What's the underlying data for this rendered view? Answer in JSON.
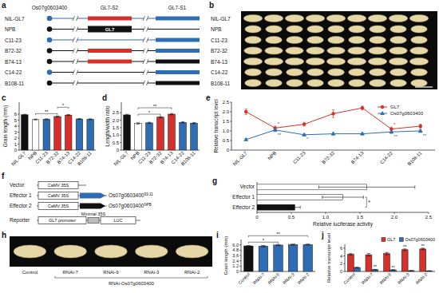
{
  "panels": {
    "a": {
      "title": "a",
      "header": {
        "gene": "Os07g0603400",
        "s2": "GL7-S2",
        "s1": "GL7-S1"
      },
      "gene_box_label": "GL7",
      "rows": [
        {
          "label": "NIL-GL7",
          "marker": "#2e6db4",
          "line": "#2e6db4",
          "s2": "#d7302a",
          "s1": "#2e6db4",
          "gene_box": false
        },
        {
          "label": "NPB",
          "marker": "#111111",
          "line": "#111111",
          "s2": null,
          "s1": null,
          "gene_box": true
        },
        {
          "label": "C11-23",
          "marker": "#2e6db4",
          "line": "#2e6db4",
          "s2": null,
          "s1": "#2e6db4",
          "gene_box": false
        },
        {
          "label": "B72-32",
          "marker": "#111111",
          "line": "#111111",
          "s2": "#d7302a",
          "s1": "#2e6db4",
          "gene_box": false
        },
        {
          "label": "B74-13",
          "marker": "#111111",
          "line": "#111111",
          "s2": "#d7302a",
          "s1": "#111111",
          "gene_box": false
        },
        {
          "label": "C14-22",
          "marker": "#2e6db4",
          "line": "#111111",
          "s2": null,
          "s1": "#2e6db4",
          "gene_box": false
        },
        {
          "label": "B108-11",
          "marker": "#111111",
          "line": "#111111",
          "s2": null,
          "s1": "#111111",
          "gene_box": false
        }
      ]
    },
    "b": {
      "title": "b",
      "rows": [
        "NIL-GL7",
        "NPB",
        "C11-23",
        "B72-32",
        "B74-13",
        "C14-22",
        "B108-11"
      ]
    },
    "f": {
      "title": "f",
      "rows": [
        {
          "label": "Vector",
          "promoter": "CaMV 35S"
        },
        {
          "label": "Effector 1",
          "promoter": "CaMV 35S",
          "gene": "Os07g0603400",
          "allele": "93-11",
          "color": "#2e6db4"
        },
        {
          "label": "Effector 2",
          "promoter": "CaMV 35S",
          "gene": "Os07g0603400",
          "allele": "NPB",
          "color": "#111111"
        },
        {
          "label": "Reporter",
          "promoter": "GL7 promoter",
          "minimal": "Minimal 35S",
          "reporter": "LUC"
        }
      ]
    },
    "h": {
      "title": "h",
      "samples": [
        "Control",
        "RNAi-7",
        "RNAi-9",
        "RNAi-3",
        "RNAi-2"
      ],
      "group_label": "RNAi-Os07g0603400"
    }
  },
  "chart_data": [
    {
      "title": "c",
      "type": "bar",
      "ylabel": "Grain length (mm)",
      "categories": [
        "NIL-GL7",
        "NPB",
        "C11-23",
        "B72-32",
        "B74-13",
        "C14-22",
        "B108-11"
      ],
      "values": [
        5.9,
        5.1,
        5.15,
        5.6,
        5.85,
        5.2,
        5.15
      ],
      "errors": [
        0.08,
        0.07,
        0.08,
        0.09,
        0.08,
        0.07,
        0.08
      ],
      "colors": [
        "#111111",
        "#ffffff",
        "#2e6db4",
        "#d7302a",
        "#d7302a",
        "#2e6db4",
        "#2e6db4"
      ],
      "ylim": [
        0,
        8
      ],
      "yticks": [
        0,
        1,
        2,
        3,
        4,
        5,
        6
      ],
      "annotations": [
        {
          "text": "**",
          "between": [
            1,
            3
          ]
        },
        {
          "text": "*",
          "between": [
            3,
            4
          ]
        }
      ]
    },
    {
      "title": "d",
      "type": "bar",
      "ylabel": "Length/width ratio",
      "categories": [
        "NIL-GL7",
        "NPB",
        "C11-23",
        "B72-32",
        "B74-13",
        "C14-22",
        "B108-11"
      ],
      "values": [
        2.35,
        1.78,
        1.82,
        2.2,
        2.4,
        1.85,
        1.8
      ],
      "errors": [
        0.04,
        0.04,
        0.04,
        0.04,
        0.04,
        0.04,
        0.04
      ],
      "colors": [
        "#111111",
        "#ffffff",
        "#2e6db4",
        "#d7302a",
        "#d7302a",
        "#2e6db4",
        "#2e6db4"
      ],
      "ylim": [
        0,
        3.2
      ],
      "yticks": [
        0,
        0.5,
        {
          "value": 1,
          "label": "1.0"
        },
        1.5,
        {
          "value": 2,
          "label": "2.0"
        },
        2.5
      ],
      "annotations": [
        {
          "text": "*",
          "between": [
            1,
            3
          ]
        },
        {
          "text": "**",
          "between": [
            1,
            4
          ]
        }
      ]
    },
    {
      "title": "e",
      "type": "line",
      "ylabel": "Relative transcript level",
      "categories": [
        "NIL-GL7",
        "NPB",
        "C11-23",
        "B72-32",
        "B74-13",
        "C14-22",
        "B108-11"
      ],
      "series": [
        {
          "name": "GL7",
          "color": "#d7302a",
          "marker": "circle",
          "values": [
            2.0,
            1.15,
            1.35,
            1.9,
            2.2,
            1.1,
            1.25
          ],
          "errors": [
            0.15,
            0.1,
            0.1,
            0.2,
            0.1,
            0.1,
            0.1
          ]
        },
        {
          "name": "Os07g0603400",
          "color": "#2e6db4",
          "marker": "triangle",
          "values": [
            0.55,
            1.05,
            0.8,
            0.85,
            0.85,
            0.95,
            1.0
          ],
          "errors": [
            0.05,
            0.08,
            0.06,
            0.07,
            0.06,
            0.07,
            0.08
          ]
        }
      ],
      "ylim": [
        0,
        2.5
      ],
      "yticks": [
        0,
        0.5,
        {
          "value": 1,
          "label": "1.0"
        },
        1.5,
        {
          "value": 2,
          "label": "2.0"
        },
        2.5
      ],
      "legend": "upper right",
      "annotations": [
        {
          "text": "*",
          "series": 0,
          "index": 1
        },
        {
          "text": "**",
          "series": 1,
          "index": 1
        },
        {
          "text": "*",
          "series": 1,
          "index": 2
        },
        {
          "text": "*",
          "series": 0,
          "index": 5
        },
        {
          "text": "**",
          "series": 1,
          "index": 5
        },
        {
          "text": "**",
          "series": 1,
          "index": 6
        }
      ]
    },
    {
      "title": "g",
      "type": "bar",
      "orientation": "horizontal",
      "xlabel": "Relative luciferase activity",
      "categories": [
        "Vector",
        "Effector 1",
        "Effector 2"
      ],
      "values": [
        1.6,
        1.25,
        0.55
      ],
      "errors": [
        0.7,
        0.3,
        0.08
      ],
      "colors": [
        "#ffffff",
        "#ffffff",
        "#111111"
      ],
      "xlim": [
        0,
        2.5
      ],
      "xticks": [
        0,
        0.5,
        {
          "value": 1,
          "label": "1.0"
        },
        1.5,
        {
          "value": 2,
          "label": "2.0"
        },
        2.5
      ],
      "annotations": [
        {
          "text": "*",
          "between": [
            1,
            2
          ]
        }
      ]
    },
    {
      "title": "i",
      "type": "bar",
      "ylabel": "Grain length (mm)",
      "categories": [
        "Control",
        "RNAi-7",
        "RNAi-9",
        "RNAi-3",
        "RNAi-2"
      ],
      "values": [
        5.75,
        5.7,
        5.95,
        6.05,
        6.05
      ],
      "errors": [
        0.1,
        0.15,
        0.12,
        0.12,
        0.12
      ],
      "colors": [
        "#111111",
        "#2e6db4",
        "#2e6db4",
        "#2e6db4",
        "#2e6db4"
      ],
      "ylim": [
        0,
        7.2
      ],
      "yticks": [
        0,
        1.2,
        2.4,
        3.6,
        4.8,
        {
          "value": 6,
          "label": "6.0"
        }
      ],
      "annotations": [
        {
          "text": "*",
          "between": [
            0,
            2
          ]
        },
        {
          "text": "**",
          "between": [
            0,
            4
          ]
        }
      ]
    },
    {
      "title": "j",
      "type": "bar",
      "ylabel": "Relative transcript level",
      "categories": [
        "Control",
        "RNAi-7",
        "RNAi-9",
        "RNAi-3",
        "RNAi-2"
      ],
      "series": [
        {
          "name": "GL7",
          "color": "#d7302a",
          "values": [
            4.4,
            4.3,
            4.6,
            5.6,
            5.8
          ],
          "errors": [
            0.2,
            0.3,
            0.3,
            0.2,
            0.2
          ]
        },
        {
          "name": "Os07g0603400",
          "color": "#2e6db4",
          "values": [
            1.0,
            0.45,
            0.4,
            0.2,
            0.15
          ],
          "errors": [
            0.1,
            0.08,
            0.06,
            0.05,
            0.05
          ]
        }
      ],
      "ylim": [
        0,
        7
      ],
      "yticks": [
        0,
        2,
        4,
        6
      ],
      "legend": "upper right",
      "annotations": [
        {
          "text": "**",
          "series": 1,
          "index": 1
        },
        {
          "text": "**",
          "series": 1,
          "index": 2
        },
        {
          "text": "**",
          "series": 0,
          "index": 3
        },
        {
          "text": "**",
          "series": 0,
          "index": 4
        }
      ]
    }
  ]
}
